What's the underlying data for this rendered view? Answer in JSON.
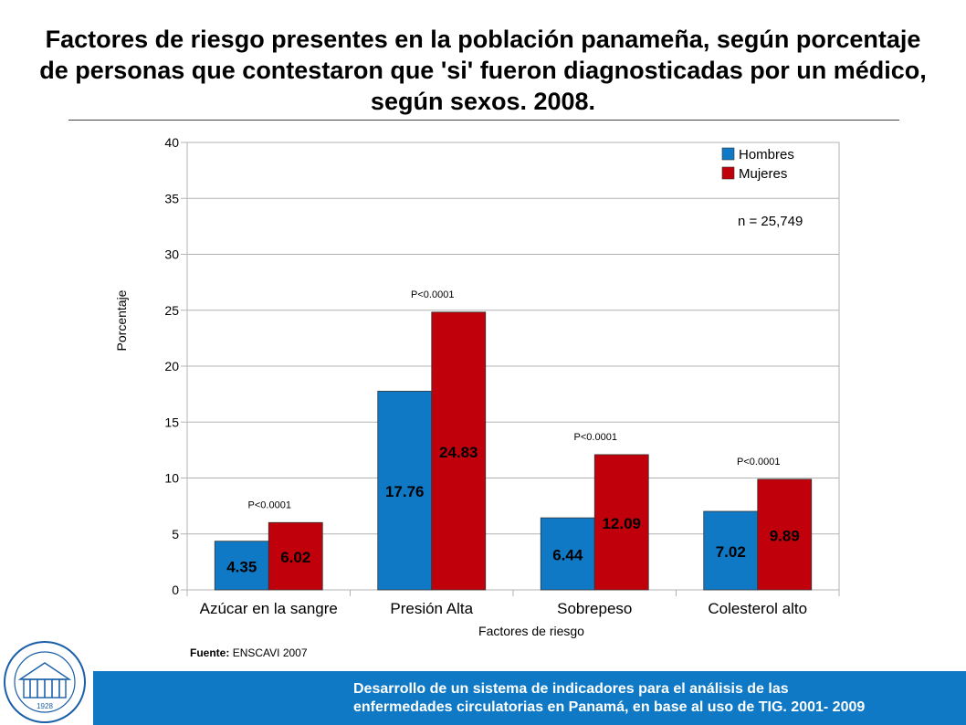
{
  "slide": {
    "title": "Factores de riesgo presentes en la población panameña, según porcentaje de personas que contestaron que 'si' fueron diagnosticadas por un médico, según sexos. 2008.",
    "source_label": "Fuente:",
    "source_value": "ENSCAVI 2007",
    "footer_line1": "Desarrollo de un sistema de indicadores para el análisis de las",
    "footer_line2": "enfermedades circulatorias en Panamá, en base al uso de TIG. 2001- 2009",
    "seal_year": "1928"
  },
  "colors": {
    "hombres": "#0f79c6",
    "mujeres": "#c0000b",
    "footer_bg": "#0f79c6"
  },
  "chart_data": {
    "type": "bar",
    "title": "",
    "xlabel": "Factores de riesgo",
    "ylabel": "Porcentaje",
    "ylim": [
      0,
      40
    ],
    "yticks": [
      0,
      5,
      10,
      15,
      20,
      25,
      30,
      35,
      40
    ],
    "grid": true,
    "legend_position": "top-right",
    "annotation": "n = 25,749",
    "categories": [
      "Azúcar en la sangre",
      "Presión Alta",
      "Sobrepeso",
      "Colesterol alto"
    ],
    "pvalues": [
      "P<0.0001",
      "P<0.0001",
      "P<0.0001",
      "P<0.0001"
    ],
    "series": [
      {
        "name": "Hombres",
        "values": [
          4.35,
          17.76,
          6.44,
          7.02
        ],
        "labels": [
          "4.35",
          "17.76",
          "6.44",
          "7.02"
        ]
      },
      {
        "name": "Mujeres",
        "values": [
          6.02,
          24.83,
          12.09,
          9.89
        ],
        "labels": [
          "6.02",
          "24.83",
          "12.09",
          "9.89"
        ]
      }
    ]
  }
}
